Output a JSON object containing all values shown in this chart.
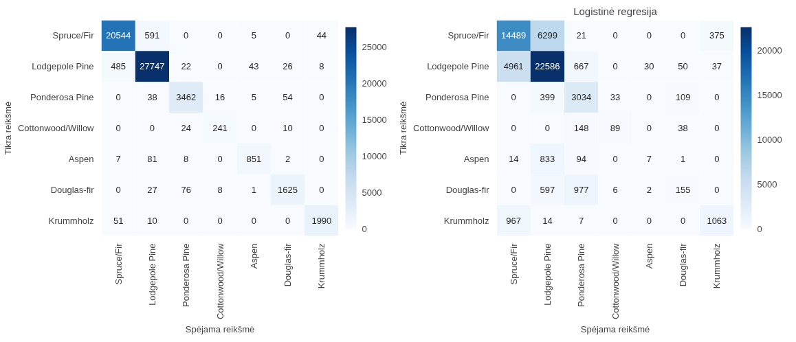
{
  "chart_data": [
    {
      "type": "heatmap",
      "xlabel": "Spėjama reikšmė",
      "ylabel": "Tikra reikšmė",
      "data_labels": true,
      "categories": [
        "Spruce/Fir",
        "Lodgepole Pine",
        "Ponderosa Pine",
        "Cottonwood/Willow",
        "Aspen",
        "Douglas-fir",
        "Krummholz"
      ],
      "y_categories": [
        "Spruce/Fir",
        "Lodgepole Pine",
        "Ponderosa Pine",
        "Cottonwood/Willow",
        "Aspen",
        "Douglas-fir",
        "Krummholz"
      ],
      "cells": [
        [
          20544,
          591,
          0,
          0,
          5,
          0,
          44
        ],
        [
          485,
          27747,
          22,
          0,
          43,
          26,
          8
        ],
        [
          0,
          38,
          3462,
          16,
          5,
          54,
          0
        ],
        [
          0,
          0,
          24,
          241,
          0,
          10,
          0
        ],
        [
          7,
          81,
          8,
          0,
          851,
          2,
          0
        ],
        [
          0,
          27,
          76,
          8,
          1,
          1625,
          0
        ],
        [
          51,
          10,
          0,
          0,
          0,
          0,
          1990
        ]
      ],
      "clim": [
        0,
        27747
      ],
      "cticks": [
        0,
        5000,
        10000,
        15000,
        20000,
        25000
      ]
    },
    {
      "type": "heatmap",
      "title": "Logistinė regresija",
      "xlabel": "Spėjama reikšmė",
      "ylabel": "Tikra reikšmė",
      "data_labels": true,
      "categories": [
        "Spruce/Fir",
        "Lodgepole Pine",
        "Ponderosa Pine",
        "Cottonwood/Willow",
        "Aspen",
        "Douglas-fir",
        "Krummholz"
      ],
      "y_categories": [
        "Spruce/Fir",
        "Lodgepole Pine",
        "Ponderosa Pine",
        "Cottonwood/Willow",
        "Aspen",
        "Douglas-fir",
        "Krummholz"
      ],
      "cells": [
        [
          14489,
          6299,
          21,
          0,
          0,
          0,
          375
        ],
        [
          4961,
          22586,
          667,
          0,
          30,
          50,
          37
        ],
        [
          0,
          399,
          3034,
          33,
          0,
          109,
          0
        ],
        [
          0,
          0,
          148,
          89,
          0,
          38,
          0
        ],
        [
          14,
          833,
          94,
          0,
          7,
          1,
          0
        ],
        [
          0,
          597,
          977,
          6,
          2,
          155,
          0
        ],
        [
          967,
          14,
          7,
          0,
          0,
          0,
          1063
        ]
      ],
      "clim": [
        0,
        22586
      ],
      "cticks": [
        0,
        5000,
        10000,
        15000,
        20000
      ]
    }
  ]
}
